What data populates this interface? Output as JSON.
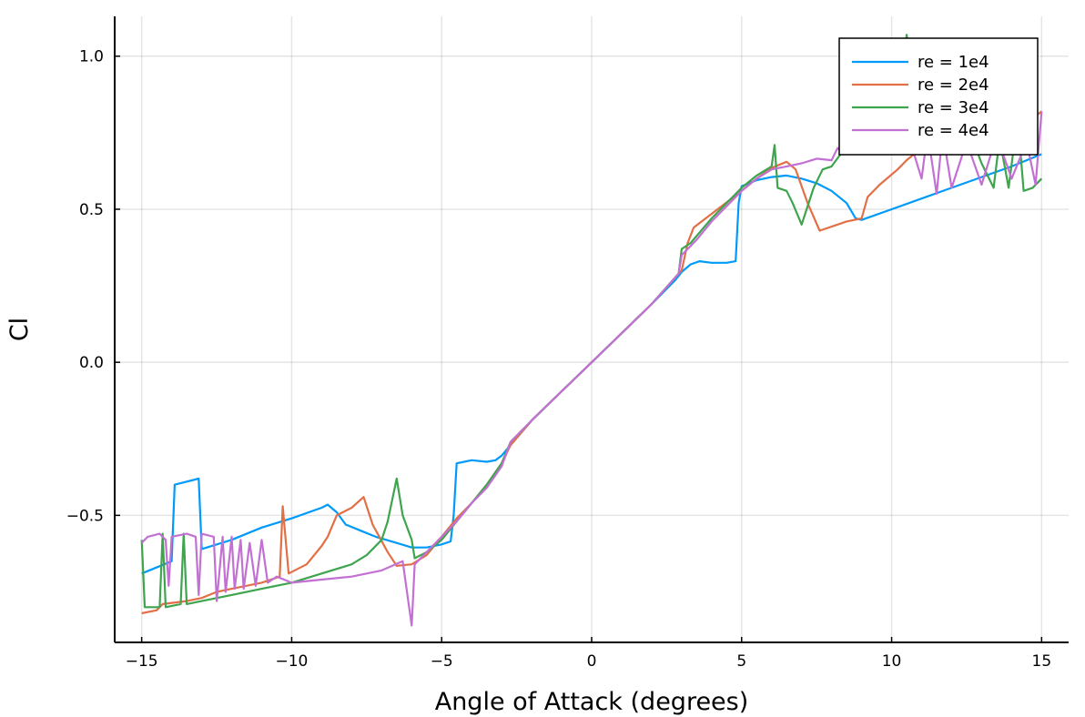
{
  "chart_data": {
    "type": "line",
    "title": "",
    "xlabel": "Angle of Attack (degrees)",
    "ylabel": "Cl",
    "xlim": [
      -15.9,
      15.9
    ],
    "ylim": [
      -0.915,
      1.13
    ],
    "xticks": [
      -15,
      -10,
      -5,
      0,
      5,
      10,
      15
    ],
    "yticks": [
      -0.5,
      0.0,
      0.5,
      1.0
    ],
    "xtick_labels": [
      "−15",
      "−10",
      "−5",
      "0",
      "5",
      "10",
      "15"
    ],
    "ytick_labels": [
      "−0.5",
      "0.0",
      "0.5",
      "1.0"
    ],
    "grid": true,
    "legend_position": "top-right",
    "series": [
      {
        "name": "re = 1e4",
        "color": "#009AFA",
        "points": [
          [
            -15,
            -0.69
          ],
          [
            -14.0,
            -0.65
          ],
          [
            -13.9,
            -0.4
          ],
          [
            -13.1,
            -0.38
          ],
          [
            -13.0,
            -0.61
          ],
          [
            -12,
            -0.58
          ],
          [
            -11,
            -0.54
          ],
          [
            -10,
            -0.51
          ],
          [
            -9,
            -0.475
          ],
          [
            -8.8,
            -0.465
          ],
          [
            -8.5,
            -0.49
          ],
          [
            -8.2,
            -0.53
          ],
          [
            -7.7,
            -0.55
          ],
          [
            -7.2,
            -0.57
          ],
          [
            -6.5,
            -0.59
          ],
          [
            -6,
            -0.605
          ],
          [
            -5.5,
            -0.605
          ],
          [
            -5,
            -0.595
          ],
          [
            -4.7,
            -0.585
          ],
          [
            -4.6,
            -0.5
          ],
          [
            -4.5,
            -0.33
          ],
          [
            -4,
            -0.32
          ],
          [
            -3.5,
            -0.325
          ],
          [
            -3.2,
            -0.32
          ],
          [
            -3,
            -0.305
          ],
          [
            -2.7,
            -0.27
          ],
          [
            -2,
            -0.19
          ],
          [
            -1,
            -0.095
          ],
          [
            0,
            0
          ],
          [
            1,
            0.095
          ],
          [
            2,
            0.19
          ],
          [
            2.8,
            0.27
          ],
          [
            3,
            0.295
          ],
          [
            3.3,
            0.32
          ],
          [
            3.6,
            0.33
          ],
          [
            4,
            0.325
          ],
          [
            4.5,
            0.325
          ],
          [
            4.8,
            0.33
          ],
          [
            4.9,
            0.52
          ],
          [
            5,
            0.575
          ],
          [
            5.5,
            0.595
          ],
          [
            6,
            0.605
          ],
          [
            6.5,
            0.61
          ],
          [
            7,
            0.6
          ],
          [
            7.5,
            0.585
          ],
          [
            8,
            0.56
          ],
          [
            8.5,
            0.52
          ],
          [
            8.8,
            0.47
          ],
          [
            9,
            0.465
          ],
          [
            10,
            0.5
          ],
          [
            11,
            0.535
          ],
          [
            12,
            0.57
          ],
          [
            13,
            0.605
          ],
          [
            14,
            0.64
          ],
          [
            15,
            0.68
          ]
        ]
      },
      {
        "name": "re = 2e4",
        "color": "#E26F46",
        "points": [
          [
            -15,
            -0.82
          ],
          [
            -14.5,
            -0.81
          ],
          [
            -14.3,
            -0.79
          ],
          [
            -13.5,
            -0.78
          ],
          [
            -13,
            -0.77
          ],
          [
            -12.5,
            -0.75
          ],
          [
            -12,
            -0.74
          ],
          [
            -11,
            -0.72
          ],
          [
            -10.4,
            -0.7
          ],
          [
            -10.3,
            -0.47
          ],
          [
            -10.1,
            -0.69
          ],
          [
            -9.5,
            -0.66
          ],
          [
            -9,
            -0.6
          ],
          [
            -8.8,
            -0.57
          ],
          [
            -8.5,
            -0.5
          ],
          [
            -8,
            -0.475
          ],
          [
            -7.6,
            -0.44
          ],
          [
            -7.3,
            -0.53
          ],
          [
            -6.8,
            -0.62
          ],
          [
            -6.5,
            -0.665
          ],
          [
            -6,
            -0.66
          ],
          [
            -5.5,
            -0.63
          ],
          [
            -5,
            -0.57
          ],
          [
            -4.5,
            -0.51
          ],
          [
            -4,
            -0.46
          ],
          [
            -3.5,
            -0.4
          ],
          [
            -3,
            -0.33
          ],
          [
            -2.7,
            -0.27
          ],
          [
            -2,
            -0.19
          ],
          [
            -1,
            -0.095
          ],
          [
            0,
            0
          ],
          [
            1,
            0.095
          ],
          [
            2,
            0.19
          ],
          [
            3,
            0.3
          ],
          [
            3.2,
            0.39
          ],
          [
            3.4,
            0.44
          ],
          [
            4,
            0.485
          ],
          [
            5,
            0.56
          ],
          [
            5.5,
            0.6
          ],
          [
            6,
            0.635
          ],
          [
            6.5,
            0.655
          ],
          [
            6.8,
            0.63
          ],
          [
            7.2,
            0.52
          ],
          [
            7.6,
            0.43
          ],
          [
            8.5,
            0.46
          ],
          [
            9,
            0.47
          ],
          [
            9.2,
            0.54
          ],
          [
            9.6,
            0.58
          ],
          [
            10.2,
            0.63
          ],
          [
            10.5,
            0.66
          ],
          [
            11,
            0.7
          ],
          [
            11.5,
            0.76
          ],
          [
            12,
            0.72
          ],
          [
            12.5,
            0.7
          ],
          [
            13,
            0.72
          ],
          [
            13.5,
            0.74
          ],
          [
            14,
            0.76
          ],
          [
            14.5,
            0.78
          ],
          [
            15,
            0.82
          ]
        ]
      },
      {
        "name": "re = 3e4",
        "color": "#3EA44E",
        "points": [
          [
            -15,
            -0.58
          ],
          [
            -14.9,
            -0.8
          ],
          [
            -14.4,
            -0.8
          ],
          [
            -14.3,
            -0.56
          ],
          [
            -14.2,
            -0.8
          ],
          [
            -13.7,
            -0.79
          ],
          [
            -13.6,
            -0.56
          ],
          [
            -13.5,
            -0.79
          ],
          [
            -13,
            -0.78
          ],
          [
            -12,
            -0.76
          ],
          [
            -11,
            -0.74
          ],
          [
            -10,
            -0.72
          ],
          [
            -9,
            -0.69
          ],
          [
            -8,
            -0.66
          ],
          [
            -7.5,
            -0.63
          ],
          [
            -7,
            -0.58
          ],
          [
            -6.8,
            -0.52
          ],
          [
            -6.5,
            -0.38
          ],
          [
            -6.3,
            -0.5
          ],
          [
            -6.0,
            -0.58
          ],
          [
            -5.9,
            -0.64
          ],
          [
            -5.5,
            -0.62
          ],
          [
            -5,
            -0.58
          ],
          [
            -4.5,
            -0.52
          ],
          [
            -4,
            -0.46
          ],
          [
            -3.5,
            -0.4
          ],
          [
            -3,
            -0.33
          ],
          [
            -2.7,
            -0.26
          ],
          [
            -2,
            -0.19
          ],
          [
            -1,
            -0.095
          ],
          [
            0,
            0
          ],
          [
            1,
            0.095
          ],
          [
            2,
            0.19
          ],
          [
            2.9,
            0.29
          ],
          [
            3,
            0.37
          ],
          [
            3.3,
            0.39
          ],
          [
            4,
            0.47
          ],
          [
            5,
            0.57
          ],
          [
            5.5,
            0.61
          ],
          [
            6,
            0.64
          ],
          [
            6.1,
            0.71
          ],
          [
            6.2,
            0.57
          ],
          [
            6.5,
            0.56
          ],
          [
            6.7,
            0.52
          ],
          [
            7,
            0.45
          ],
          [
            7.4,
            0.57
          ],
          [
            7.7,
            0.63
          ],
          [
            8,
            0.64
          ],
          [
            8.3,
            0.68
          ],
          [
            8.8,
            0.72
          ],
          [
            9.2,
            0.76
          ],
          [
            9.7,
            0.82
          ],
          [
            10,
            0.9
          ],
          [
            10.4,
            0.94
          ],
          [
            10.5,
            1.07
          ],
          [
            10.7,
            0.97
          ],
          [
            11,
            0.9
          ],
          [
            11.5,
            0.83
          ],
          [
            12,
            0.74
          ],
          [
            12.5,
            0.78
          ],
          [
            13,
            0.65
          ],
          [
            13.4,
            0.57
          ],
          [
            13.6,
            0.73
          ],
          [
            13.9,
            0.57
          ],
          [
            14.2,
            0.8
          ],
          [
            14.4,
            0.56
          ],
          [
            14.7,
            0.57
          ],
          [
            15,
            0.6
          ]
        ]
      },
      {
        "name": "re = 4e4",
        "color": "#C271D2",
        "points": [
          [
            -15,
            -0.59
          ],
          [
            -14.8,
            -0.57
          ],
          [
            -14.4,
            -0.56
          ],
          [
            -14.2,
            -0.58
          ],
          [
            -14.1,
            -0.73
          ],
          [
            -14.0,
            -0.57
          ],
          [
            -13.5,
            -0.56
          ],
          [
            -13.2,
            -0.57
          ],
          [
            -13.1,
            -0.76
          ],
          [
            -13.0,
            -0.56
          ],
          [
            -12.6,
            -0.57
          ],
          [
            -12.5,
            -0.78
          ],
          [
            -12.3,
            -0.57
          ],
          [
            -12.2,
            -0.75
          ],
          [
            -12.0,
            -0.57
          ],
          [
            -11.9,
            -0.74
          ],
          [
            -11.7,
            -0.58
          ],
          [
            -11.6,
            -0.74
          ],
          [
            -11.4,
            -0.59
          ],
          [
            -11.2,
            -0.73
          ],
          [
            -11,
            -0.58
          ],
          [
            -10.8,
            -0.72
          ],
          [
            -10.5,
            -0.7
          ],
          [
            -10,
            -0.72
          ],
          [
            -9,
            -0.71
          ],
          [
            -8,
            -0.7
          ],
          [
            -7,
            -0.68
          ],
          [
            -6.3,
            -0.65
          ],
          [
            -6.0,
            -0.86
          ],
          [
            -5.9,
            -0.66
          ],
          [
            -5.5,
            -0.62
          ],
          [
            -5,
            -0.57
          ],
          [
            -4.5,
            -0.52
          ],
          [
            -4,
            -0.46
          ],
          [
            -3.5,
            -0.41
          ],
          [
            -3,
            -0.34
          ],
          [
            -2.7,
            -0.26
          ],
          [
            -2,
            -0.19
          ],
          [
            -1,
            -0.095
          ],
          [
            0,
            0
          ],
          [
            1,
            0.095
          ],
          [
            2,
            0.19
          ],
          [
            2.9,
            0.29
          ],
          [
            3,
            0.35
          ],
          [
            3.5,
            0.4
          ],
          [
            4,
            0.46
          ],
          [
            5,
            0.56
          ],
          [
            5.5,
            0.6
          ],
          [
            6,
            0.63
          ],
          [
            6.5,
            0.64
          ],
          [
            7,
            0.65
          ],
          [
            7.5,
            0.665
          ],
          [
            8,
            0.66
          ],
          [
            8.2,
            0.7
          ],
          [
            8.4,
            0.68
          ],
          [
            8.6,
            0.7
          ],
          [
            9,
            0.71
          ],
          [
            9.5,
            0.72
          ],
          [
            10,
            0.74
          ],
          [
            10.5,
            0.76
          ],
          [
            11,
            0.6
          ],
          [
            11.2,
            0.75
          ],
          [
            11.5,
            0.55
          ],
          [
            11.7,
            0.75
          ],
          [
            12,
            0.57
          ],
          [
            12.5,
            0.72
          ],
          [
            13,
            0.58
          ],
          [
            13.5,
            0.74
          ],
          [
            14,
            0.6
          ],
          [
            14.5,
            0.72
          ],
          [
            14.8,
            0.58
          ],
          [
            15,
            0.82
          ]
        ]
      }
    ]
  }
}
